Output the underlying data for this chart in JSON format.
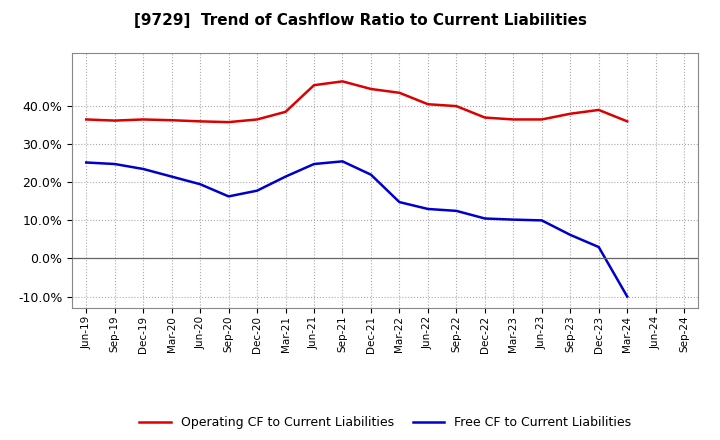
{
  "title": "[9729]  Trend of Cashflow Ratio to Current Liabilities",
  "x_labels": [
    "Jun-19",
    "Sep-19",
    "Dec-19",
    "Mar-20",
    "Jun-20",
    "Sep-20",
    "Dec-20",
    "Mar-21",
    "Jun-21",
    "Sep-21",
    "Dec-21",
    "Mar-22",
    "Jun-22",
    "Sep-22",
    "Dec-22",
    "Mar-23",
    "Jun-23",
    "Sep-23",
    "Dec-23",
    "Mar-24",
    "Jun-24",
    "Sep-24"
  ],
  "operating_cf": [
    0.365,
    0.362,
    0.365,
    0.363,
    0.36,
    0.358,
    0.365,
    0.385,
    0.455,
    0.465,
    0.445,
    0.435,
    0.405,
    0.4,
    0.37,
    0.365,
    0.365,
    0.38,
    0.39,
    0.36,
    null,
    null
  ],
  "free_cf": [
    0.252,
    0.248,
    0.235,
    0.215,
    0.195,
    0.163,
    0.178,
    0.215,
    0.248,
    0.255,
    0.22,
    0.148,
    0.13,
    0.125,
    0.105,
    0.102,
    0.1,
    0.062,
    0.03,
    -0.1,
    null,
    null
  ],
  "operating_color": "#dd0000",
  "free_color": "#0000cc",
  "ylim": [
    -0.13,
    0.54
  ],
  "yticks": [
    -0.1,
    0.0,
    0.1,
    0.2,
    0.3,
    0.4
  ],
  "background_color": "#ffffff",
  "grid_color": "#aaaaaa",
  "legend_op": "Operating CF to Current Liabilities",
  "legend_free": "Free CF to Current Liabilities"
}
